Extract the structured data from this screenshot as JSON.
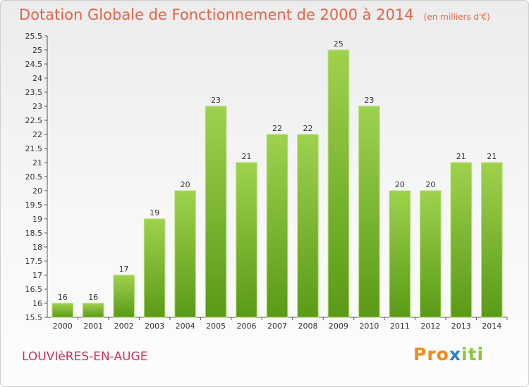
{
  "header": {
    "title": "Dotation Globale de Fonctionnement de 2000 à 2014",
    "unit": "(en milliers d'€)"
  },
  "footer": {
    "commune": "LOUVIèRES-EN-AUGE",
    "logo": {
      "letters": [
        "P",
        "r",
        "o",
        "x",
        "i",
        "t",
        "i"
      ]
    }
  },
  "colors": {
    "bar_top": "#9ed24d",
    "bar_bottom": "#5a9a16",
    "title": "#e0644a",
    "commune": "#c8335c",
    "logo": [
      "#f08a1c",
      "#f08a1c",
      "#f08a1c",
      "#2a7fd4",
      "#8cc63f",
      "#8cc63f",
      "#8cc63f"
    ]
  },
  "chart_data": {
    "type": "bar",
    "categories": [
      "2000",
      "2001",
      "2002",
      "2003",
      "2004",
      "2005",
      "2006",
      "2007",
      "2008",
      "2009",
      "2010",
      "2011",
      "2012",
      "2013",
      "2014"
    ],
    "values": [
      16,
      16,
      17,
      19,
      20,
      23,
      21,
      22,
      22,
      25,
      23,
      20,
      20,
      21,
      21
    ],
    "ylim": [
      15.5,
      25.5
    ],
    "yticks": [
      "15.5",
      "16",
      "16.5",
      "17",
      "17.5",
      "18",
      "18.5",
      "19",
      "19.5",
      "20",
      "20.5",
      "21",
      "21.5",
      "22",
      "22.5",
      "23",
      "23.5",
      "24",
      "24.5",
      "25",
      "25.5"
    ],
    "grid": false
  }
}
